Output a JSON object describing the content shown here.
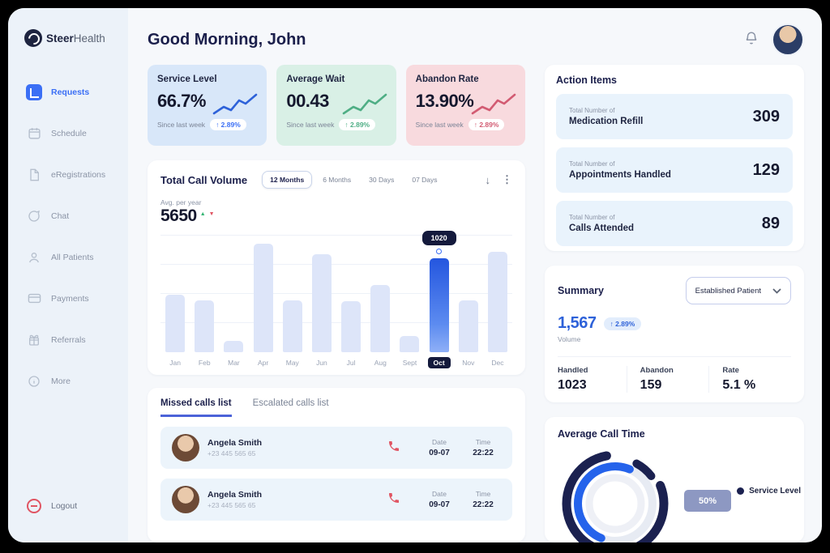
{
  "brand": {
    "bold": "Steer",
    "light": "Health"
  },
  "header": {
    "greeting": "Good Morning, John"
  },
  "sidebar": {
    "items": [
      {
        "label": "Requests"
      },
      {
        "label": "Schedule"
      },
      {
        "label": "eRegistrations"
      },
      {
        "label": "Chat"
      },
      {
        "label": "All Patients"
      },
      {
        "label": "Payments"
      },
      {
        "label": "Referrals"
      },
      {
        "label": "More"
      }
    ],
    "active": "Requests",
    "logout": "Logout"
  },
  "stat_cards": [
    {
      "title": "Service Level",
      "value": "66.7%",
      "caption": "Since last week",
      "badge": "↑ 2.89%",
      "accent": "#2e62d9",
      "bg": "#d8e7f9"
    },
    {
      "title": "Average Wait",
      "value": "00.43",
      "caption": "Since last week",
      "badge": "↑ 2.89%",
      "accent": "#4fae85",
      "bg": "#d9f0e6"
    },
    {
      "title": "Abandon Rate",
      "value": "13.90%",
      "caption": "Since last week",
      "badge": "↑ 2.89%",
      "accent": "#d25b72",
      "bg": "#f8dade"
    }
  ],
  "call_volume": {
    "title": "Total Call Volume",
    "tabs": [
      "12 Months",
      "6 Months",
      "30 Days",
      "07 Days"
    ],
    "active_tab": "12 Months",
    "avg_label": "Avg. per year",
    "avg_value": "5650",
    "up_marker": "▲",
    "down_marker": "▼"
  },
  "chart_data": [
    {
      "type": "bar",
      "title": "Total Call Volume",
      "categories": [
        "Jan",
        "Feb",
        "Mar",
        "Apr",
        "May",
        "Jun",
        "Jul",
        "Aug",
        "Sept",
        "Oct",
        "Nov",
        "Dec"
      ],
      "values": [
        620,
        560,
        120,
        1180,
        560,
        1060,
        555,
        730,
        180,
        1020,
        560,
        1090
      ],
      "ylim": [
        0,
        1300
      ],
      "grid": true,
      "highlight_index": 9,
      "highlight_label": "1020",
      "bar_color": "#dde5f9",
      "highlight_color": "#2d63e8"
    },
    {
      "type": "pie",
      "title": "Average Call Time",
      "labels": [
        "Service Level"
      ],
      "values": [
        50
      ],
      "center_label": "50%",
      "colors": [
        "#1b2150",
        "#2563eb"
      ]
    }
  ],
  "action_items": {
    "title": "Action Items",
    "sub_label": "Total Number of",
    "items": [
      {
        "label": "Medication Refill",
        "value": "309"
      },
      {
        "label": "Appointments Handled",
        "value": "129"
      },
      {
        "label": "Calls Attended",
        "value": "89"
      }
    ]
  },
  "summary": {
    "title": "Summary",
    "dropdown_value": "Established Patient",
    "volume_value": "1,567",
    "volume_badge": "↑ 2.89%",
    "volume_label": "Volume",
    "stats": [
      {
        "label": "Handled",
        "value": "1023"
      },
      {
        "label": "Abandon",
        "value": "159"
      },
      {
        "label": "Rate",
        "value": "5.1 %"
      }
    ]
  },
  "calls": {
    "tabs": [
      "Missed calls list",
      "Escalated calls list"
    ],
    "active_tab": "Missed calls list",
    "date_label": "Date",
    "time_label": "Time",
    "rows": [
      {
        "name": "Angela Smith",
        "phone": "+23 445 565 65",
        "date": "09-07",
        "time": "22:22"
      },
      {
        "name": "Angela Smith",
        "phone": "+23 445 565 65",
        "date": "09-07",
        "time": "22:22"
      }
    ]
  },
  "avg_call_time": {
    "title": "Average Call Time",
    "badge": "50%",
    "legend": "Service Level"
  },
  "icons": {
    "download": "↓",
    "kebab": "⋮"
  }
}
